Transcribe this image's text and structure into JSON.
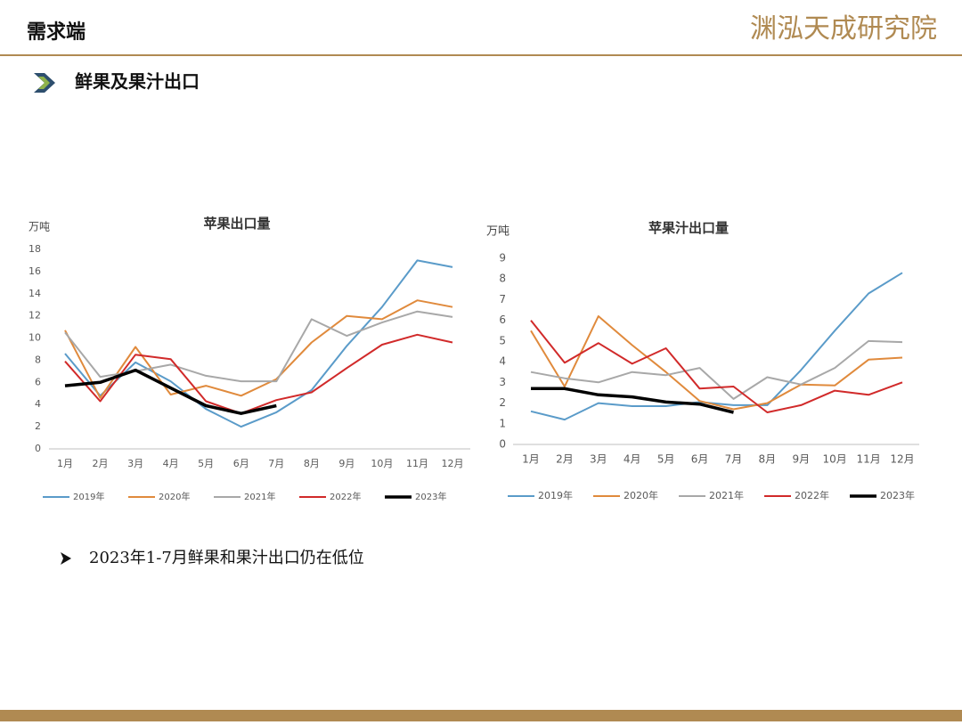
{
  "header": {
    "title": "需求端",
    "logo": "渊泓天成研究院"
  },
  "section": {
    "title": "鲜果及果汁出口"
  },
  "bullet": "2023年1-7月鲜果和果汁出口仍在低位",
  "chart_data": [
    {
      "type": "line",
      "title": "苹果出口量",
      "y_label": "万吨",
      "categories": [
        "1月",
        "2月",
        "3月",
        "4月",
        "5月",
        "6月",
        "7月",
        "8月",
        "9月",
        "10月",
        "11月",
        "12月"
      ],
      "ylim": [
        0,
        18
      ],
      "yticks": [
        0,
        2,
        4,
        6,
        8,
        10,
        12,
        14,
        16,
        18
      ],
      "grid": false,
      "series": [
        {
          "name": "2019年",
          "color": "#5a9bc9",
          "width": 2,
          "values": [
            8.6,
            4.8,
            7.8,
            6.1,
            3.6,
            2.0,
            3.3,
            5.3,
            9.3,
            12.8,
            17.0,
            16.4
          ]
        },
        {
          "name": "2020年",
          "color": "#e08a3c",
          "width": 2,
          "values": [
            10.7,
            4.6,
            9.2,
            4.9,
            5.7,
            4.8,
            6.3,
            9.6,
            12.0,
            11.7,
            13.4,
            12.8
          ]
        },
        {
          "name": "2021年",
          "color": "#a8a8a8",
          "width": 2,
          "values": [
            10.5,
            6.5,
            7.0,
            7.6,
            6.6,
            6.1,
            6.1,
            11.7,
            10.2,
            11.4,
            12.4,
            11.9
          ]
        },
        {
          "name": "2022年",
          "color": "#d12a2a",
          "width": 2,
          "values": [
            7.9,
            4.3,
            8.5,
            8.1,
            4.3,
            3.2,
            4.4,
            5.1,
            7.3,
            9.4,
            10.3,
            9.6
          ]
        },
        {
          "name": "2023年",
          "color": "#000000",
          "width": 3.5,
          "values": [
            5.7,
            6.0,
            7.1,
            5.5,
            3.9,
            3.2,
            3.9,
            null,
            null,
            null,
            null,
            null
          ]
        }
      ]
    },
    {
      "type": "line",
      "title": "苹果汁出口量",
      "y_label": "万吨",
      "categories": [
        "1月",
        "2月",
        "3月",
        "4月",
        "5月",
        "6月",
        "7月",
        "8月",
        "9月",
        "10月",
        "11月",
        "12月"
      ],
      "ylim": [
        0,
        9
      ],
      "yticks": [
        0,
        1,
        2,
        3,
        4,
        5,
        6,
        7,
        8,
        9
      ],
      "grid": false,
      "series": [
        {
          "name": "2019年",
          "color": "#5a9bc9",
          "width": 2,
          "values": [
            1.6,
            1.2,
            2.0,
            1.85,
            1.85,
            2.05,
            1.9,
            1.9,
            3.6,
            5.5,
            7.3,
            8.3
          ]
        },
        {
          "name": "2020年",
          "color": "#e08a3c",
          "width": 2,
          "values": [
            5.5,
            2.8,
            6.2,
            4.8,
            3.5,
            2.1,
            1.7,
            2.0,
            2.9,
            2.85,
            4.1,
            4.2
          ]
        },
        {
          "name": "2021年",
          "color": "#a8a8a8",
          "width": 2,
          "values": [
            3.5,
            3.2,
            3.0,
            3.5,
            3.35,
            3.7,
            2.2,
            3.25,
            2.9,
            3.7,
            5.0,
            4.95
          ]
        },
        {
          "name": "2022年",
          "color": "#d12a2a",
          "width": 2,
          "values": [
            6.0,
            3.95,
            4.9,
            3.9,
            4.65,
            2.7,
            2.8,
            1.55,
            1.9,
            2.6,
            2.4,
            3.0
          ]
        },
        {
          "name": "2023年",
          "color": "#000000",
          "width": 3.5,
          "values": [
            2.7,
            2.7,
            2.4,
            2.3,
            2.05,
            1.95,
            1.55,
            null,
            null,
            null,
            null,
            null
          ]
        }
      ]
    }
  ]
}
